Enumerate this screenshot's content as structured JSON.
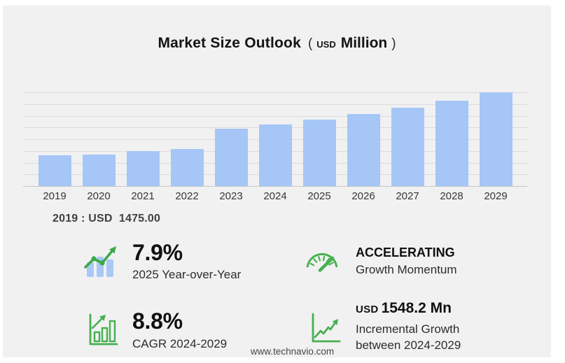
{
  "header": {
    "title": "Market Size Outlook",
    "paren_open": "(",
    "unit_small": "USD",
    "unit_large": "Million",
    "paren_close": ")"
  },
  "chart_data": {
    "type": "bar",
    "title": "Market Size Outlook (USD Million)",
    "unit": "USD Million",
    "categories": [
      "2019",
      "2020",
      "2021",
      "2022",
      "2023",
      "2024",
      "2025",
      "2026",
      "2027",
      "2028",
      "2029"
    ],
    "values": [
      1475.0,
      1520,
      1665,
      1790,
      2740,
      2951.4,
      3184.6,
      3450,
      3765,
      4100,
      4499.6
    ],
    "xlabel": "",
    "ylabel": "",
    "ylim": [
      0,
      4500
    ],
    "grid": true,
    "gridline_divisions": 8,
    "legend_position": "none",
    "bar_color": "#a5c6f7"
  },
  "annotation": {
    "label": "2019 : USD  1475.00"
  },
  "stats": {
    "yoy": {
      "value": "7.9%",
      "label": "2025 Year-over-Year",
      "icon": "bars-uptrend-icon"
    },
    "momentum": {
      "value": "ACCELERATING",
      "label": "Growth Momentum",
      "icon": "speedometer-icon"
    },
    "cagr": {
      "value": "8.8%",
      "label": "CAGR 2024-2029",
      "icon": "bar-chart-growth-icon"
    },
    "incremental": {
      "prefix": "USD",
      "value": "1548.2 Mn",
      "label_line1": "Incremental Growth",
      "label_line2": "between 2024-2029",
      "icon": "line-chart-growth-icon"
    }
  },
  "footer": {
    "site": "www.technavio.com"
  },
  "colors": {
    "panel_bg": "#f1f1f2",
    "bar_blue": "#a5c6f7",
    "bar_blue_icon": "#a9c8f6",
    "accent_green": "#47b04f",
    "accent_green_dark": "#3aa947",
    "gridline": "#dcdcdd"
  }
}
